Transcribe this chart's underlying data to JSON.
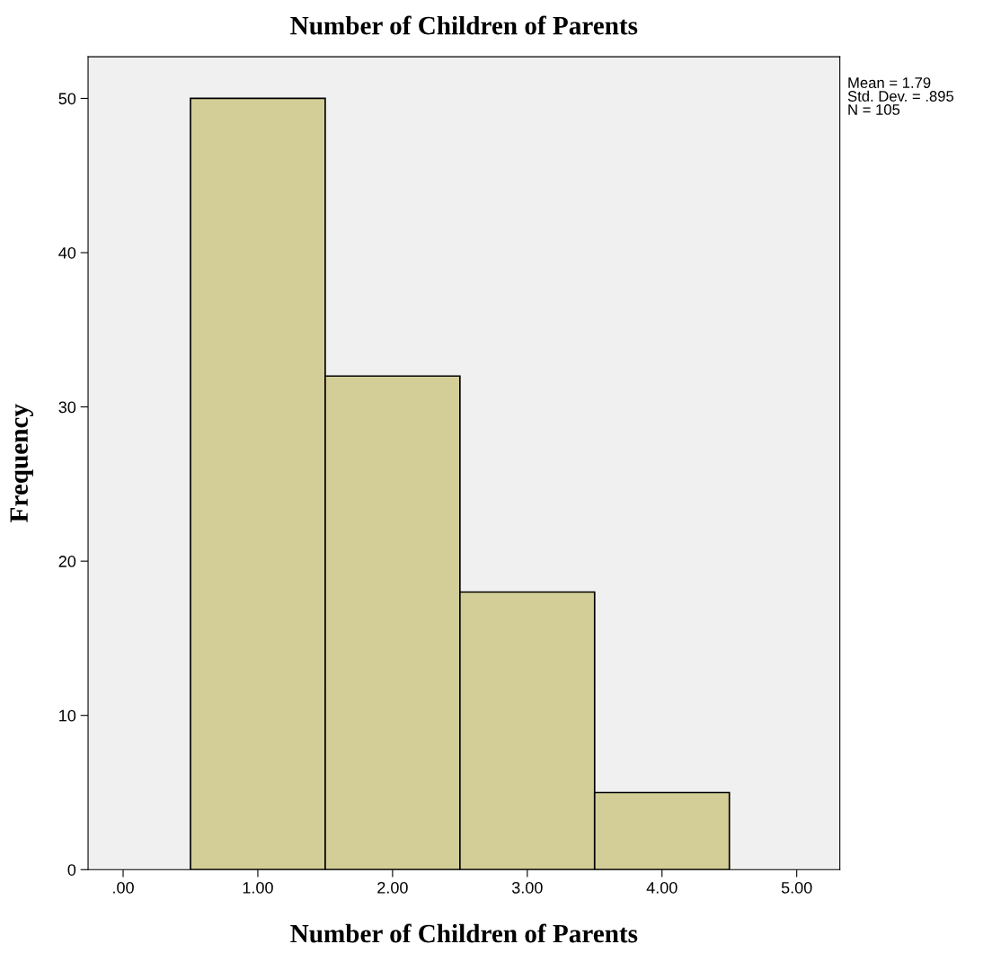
{
  "chart_data": {
    "type": "histogram",
    "title": "Number of Children of Parents",
    "xlabel": "Number of Children of Parents",
    "ylabel": "Frequency",
    "bins": [
      0.5,
      1.5,
      2.5,
      3.5,
      4.5
    ],
    "values": [
      50,
      32,
      18,
      5
    ],
    "color": "#d3ce97",
    "xlim": [
      -0.26,
      5.32
    ],
    "ylim": [
      0,
      52.7
    ],
    "xticks": [
      {
        "value": 0,
        "label": ".00"
      },
      {
        "value": 1,
        "label": "1.00"
      },
      {
        "value": 2,
        "label": "2.00"
      },
      {
        "value": 3,
        "label": "3.00"
      },
      {
        "value": 4,
        "label": "4.00"
      },
      {
        "value": 5,
        "label": "5.00"
      }
    ],
    "yticks": [
      0,
      10,
      20,
      30,
      40,
      50
    ],
    "annotations": [
      "Mean = 1.79\nStd. Dev. = .895\nN = 105"
    ],
    "grid": false,
    "legend": false
  }
}
